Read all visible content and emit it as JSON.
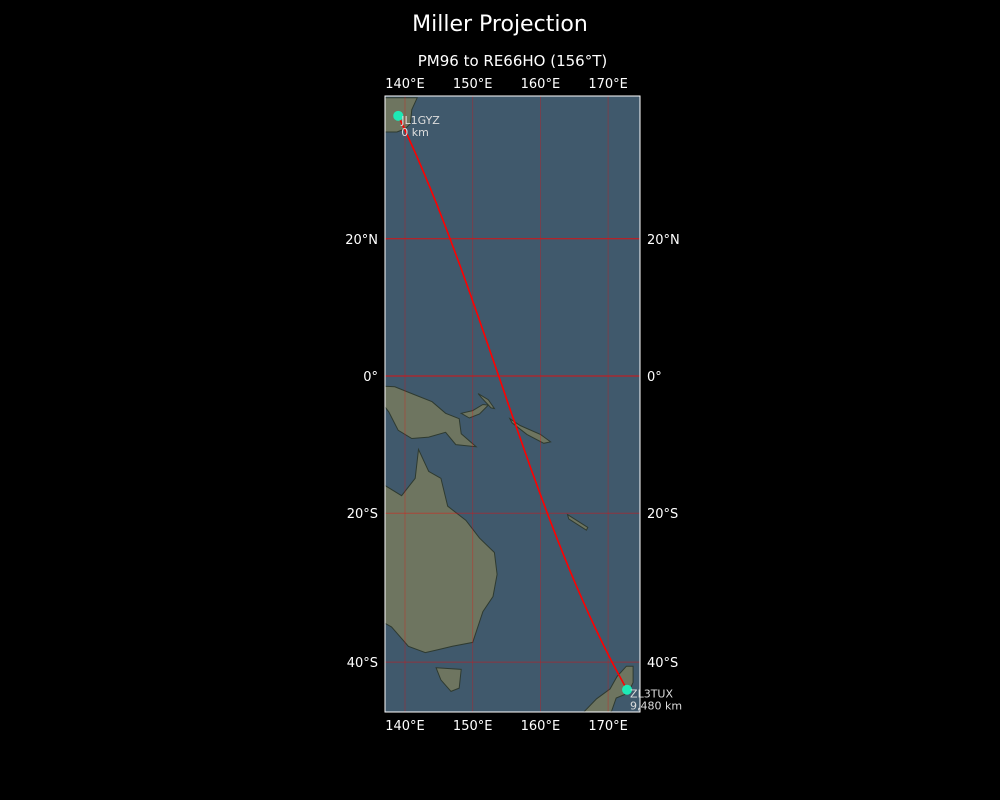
{
  "title": "Miller Projection",
  "subtitle": "PM96 to RE66HO (156°T)",
  "map": {
    "projection": "Miller",
    "extent": {
      "lon": [
        137,
        173.7
      ],
      "lat": [
        -46.5,
        38.5
      ]
    },
    "ocean_color": "#40596c",
    "land_color": "#6e7560",
    "grid_color": "#ff0000",
    "path_color": "#ff0000",
    "marker_color": "#1de9b6"
  },
  "lon_ticks": [
    {
      "value": 140,
      "label": "140°E"
    },
    {
      "value": 150,
      "label": "150°E"
    },
    {
      "value": 160,
      "label": "160°E"
    },
    {
      "value": 170,
      "label": "170°E"
    }
  ],
  "lat_ticks": [
    {
      "value": 20,
      "label": "20°N"
    },
    {
      "value": 0,
      "label": "0°"
    },
    {
      "value": -20,
      "label": "20°S"
    },
    {
      "value": -40,
      "label": "40°S"
    }
  ],
  "stations": [
    {
      "call": "JL1GYZ",
      "distance": "0 km",
      "lat": 36.7,
      "lon": 139.0
    },
    {
      "call": "ZL3TUX",
      "distance": "9,480 km",
      "lat": -43.4,
      "lon": 172.8
    }
  ]
}
